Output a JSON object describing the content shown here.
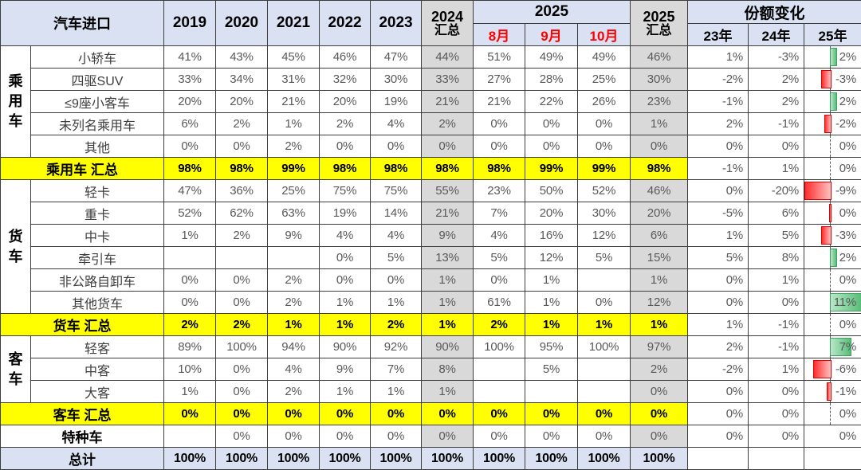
{
  "header": {
    "title": "汽车进口",
    "years": [
      "2019",
      "2020",
      "2021",
      "2022",
      "2023"
    ],
    "col_2024": {
      "line1": "2024",
      "line2": "汇总"
    },
    "group_2025": "2025",
    "months": [
      "8月",
      "9月",
      "10月"
    ],
    "col_2025": {
      "line1": "2025",
      "line2": "汇总"
    },
    "share_change": "份额变化",
    "share_years": [
      "23年",
      "24年",
      "25年"
    ]
  },
  "colors": {
    "header_bg": "#D9E1F2",
    "band_bg": "#D9D9D9",
    "summary_bg": "#FFFF00",
    "total_bg": "#D9E1F2",
    "month_text": "#FF0000",
    "value_text": "#595959",
    "positive_bar": "#57BD77",
    "negative_bar": "#FF2D2D",
    "border": "#3C3C3C"
  },
  "rows": [
    {
      "group": "乘用车",
      "gspan": 5,
      "label": "小轿车",
      "type": "normal",
      "dash": true,
      "bar": 2,
      "v": [
        "41%",
        "43%",
        "45%",
        "46%",
        "47%",
        "44%",
        "51%",
        "49%",
        "49%",
        "46%",
        "1%",
        "-3%",
        "2%"
      ]
    },
    {
      "label": "四驱SUV",
      "type": "normal",
      "dash": true,
      "bar": -3,
      "v": [
        "33%",
        "34%",
        "31%",
        "32%",
        "30%",
        "33%",
        "27%",
        "28%",
        "25%",
        "30%",
        "-2%",
        "2%",
        "-3%"
      ]
    },
    {
      "label": "≤9座小客车",
      "type": "normal",
      "dash": true,
      "bar": 2,
      "v": [
        "20%",
        "20%",
        "21%",
        "20%",
        "19%",
        "21%",
        "21%",
        "22%",
        "26%",
        "23%",
        "-1%",
        "2%",
        "2%"
      ]
    },
    {
      "label": "未列名乘用车",
      "type": "normal",
      "dash": true,
      "bar": -2,
      "v": [
        "6%",
        "2%",
        "1%",
        "2%",
        "4%",
        "2%",
        "0%",
        "0%",
        "0%",
        "1%",
        "2%",
        "-1%",
        "-2%"
      ]
    },
    {
      "label": "其他",
      "type": "normal",
      "dash": true,
      "bar": 0,
      "v": [
        "0%",
        "0%",
        "2%",
        "0%",
        "0%",
        "0%",
        "0%",
        "0%",
        "0%",
        "0%",
        "0%",
        "0%",
        "0%"
      ]
    },
    {
      "label": "乘用车 汇总",
      "type": "summary",
      "dash": true,
      "bar": 0,
      "v": [
        "98%",
        "98%",
        "99%",
        "98%",
        "98%",
        "98%",
        "98%",
        "99%",
        "99%",
        "98%",
        "-1%",
        "1%",
        "0%"
      ]
    },
    {
      "group": "货车",
      "gspan": 6,
      "label": "轻卡",
      "type": "normal",
      "dash": true,
      "bar": -9,
      "v": [
        "47%",
        "36%",
        "25%",
        "75%",
        "75%",
        "55%",
        "23%",
        "50%",
        "52%",
        "46%",
        "0%",
        "-20%",
        "-9%"
      ]
    },
    {
      "label": "重卡",
      "type": "normal",
      "dash": true,
      "bar": -0.4,
      "v": [
        "52%",
        "62%",
        "63%",
        "19%",
        "14%",
        "21%",
        "7%",
        "20%",
        "30%",
        "20%",
        "-5%",
        "6%",
        "0%"
      ]
    },
    {
      "label": "中卡",
      "type": "normal",
      "dash": true,
      "bar": -3,
      "v": [
        "1%",
        "2%",
        "9%",
        "4%",
        "4%",
        "9%",
        "4%",
        "16%",
        "12%",
        "6%",
        "1%",
        "5%",
        "-3%"
      ]
    },
    {
      "label": "牵引车",
      "type": "normal",
      "dash": true,
      "bar": 2,
      "v": [
        "",
        "",
        "",
        "0%",
        "5%",
        "13%",
        "5%",
        "12%",
        "5%",
        "15%",
        "5%",
        "8%",
        "2%"
      ]
    },
    {
      "label": "非公路自卸车",
      "type": "normal",
      "dash": true,
      "bar": 0,
      "v": [
        "0%",
        "0%",
        "2%",
        "0%",
        "0%",
        "1%",
        "0%",
        "1%",
        "",
        "1%",
        "0%",
        "1%",
        "0%"
      ]
    },
    {
      "label": "其他货车",
      "type": "normal",
      "dash": true,
      "bar": 11,
      "v": [
        "0%",
        "0%",
        "2%",
        "1%",
        "1%",
        "1%",
        "61%",
        "1%",
        "0%",
        "12%",
        "0%",
        "0%",
        "11%"
      ]
    },
    {
      "label": "货车 汇总",
      "type": "summary",
      "dash": true,
      "bar": 0,
      "v": [
        "2%",
        "2%",
        "1%",
        "1%",
        "2%",
        "1%",
        "2%",
        "1%",
        "1%",
        "1%",
        "1%",
        "-1%",
        "0%"
      ]
    },
    {
      "group": "客车",
      "gspan": 3,
      "label": "轻客",
      "type": "normal",
      "dash": true,
      "bar": 7,
      "v": [
        "89%",
        "100%",
        "94%",
        "90%",
        "92%",
        "90%",
        "100%",
        "95%",
        "100%",
        "97%",
        "2%",
        "-1%",
        "7%"
      ]
    },
    {
      "label": "中客",
      "type": "normal",
      "dash": true,
      "bar": -6,
      "v": [
        "10%",
        "0%",
        "4%",
        "9%",
        "7%",
        "8%",
        "",
        "5%",
        "",
        "2%",
        "-2%",
        "1%",
        "-6%"
      ]
    },
    {
      "label": "大客",
      "type": "normal",
      "dash": true,
      "bar": -1,
      "v": [
        "1%",
        "0%",
        "2%",
        "1%",
        "1%",
        "1%",
        "",
        "",
        "",
        "0%",
        "0%",
        "0%",
        "-1%"
      ]
    },
    {
      "label": "客车 汇总",
      "type": "summary",
      "dash": true,
      "bar": 0,
      "v": [
        "0%",
        "0%",
        "0%",
        "0%",
        "0%",
        "0%",
        "0%",
        "0%",
        "0%",
        "0%",
        "0%",
        "0%",
        "0%"
      ]
    },
    {
      "label": "特种车",
      "type": "special",
      "dash": false,
      "bar": null,
      "v": [
        "",
        "0%",
        "0%",
        "0%",
        "0%",
        "0%",
        "0%",
        "0%",
        "0%",
        "0%",
        "0%",
        "0%",
        "0%"
      ]
    },
    {
      "label": "总计",
      "type": "total",
      "dash": false,
      "bar": null,
      "v": [
        "100%",
        "100%",
        "100%",
        "100%",
        "100%",
        "100%",
        "100%",
        "100%",
        "100%",
        "100%",
        "",
        "",
        ""
      ]
    }
  ],
  "databar": {
    "axis_pct": 45,
    "neg_max": 9,
    "pos_max": 11
  }
}
